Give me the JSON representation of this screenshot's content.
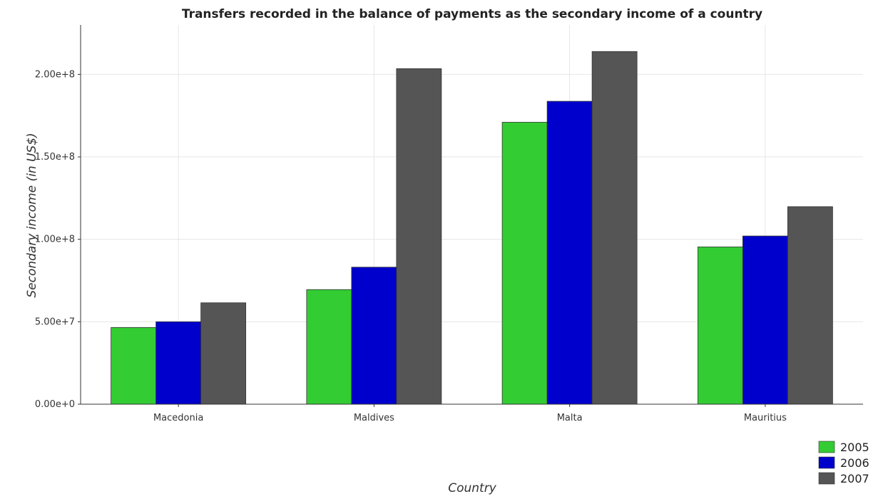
{
  "chart_data": {
    "type": "bar",
    "title": "Transfers recorded in the balance of payments as the secondary income of a country",
    "xlabel": "Country",
    "ylabel": "Secondary income (in US$)",
    "categories": [
      "Macedonia",
      "Maldives",
      "Malta",
      "Mauritius"
    ],
    "series": [
      {
        "name": "2005",
        "color": "#33cc33",
        "values": [
          46500000,
          69500000,
          171000000,
          95400000
        ]
      },
      {
        "name": "2006",
        "color": "#0000cc",
        "values": [
          50000000,
          83100000,
          183700000,
          102000000
        ]
      },
      {
        "name": "2007",
        "color": "#555555",
        "values": [
          61500000,
          203500000,
          213900000,
          119800000
        ]
      }
    ],
    "ylim": [
      0,
      230000000
    ],
    "yticks": [
      0,
      50000000,
      100000000,
      150000000,
      200000000
    ],
    "ytick_labels": [
      "0.00e+0",
      "5.00e+7",
      "1.00e+8",
      "1.50e+8",
      "2.00e+8"
    ],
    "grid": true,
    "legend_position": "bottom-right"
  }
}
